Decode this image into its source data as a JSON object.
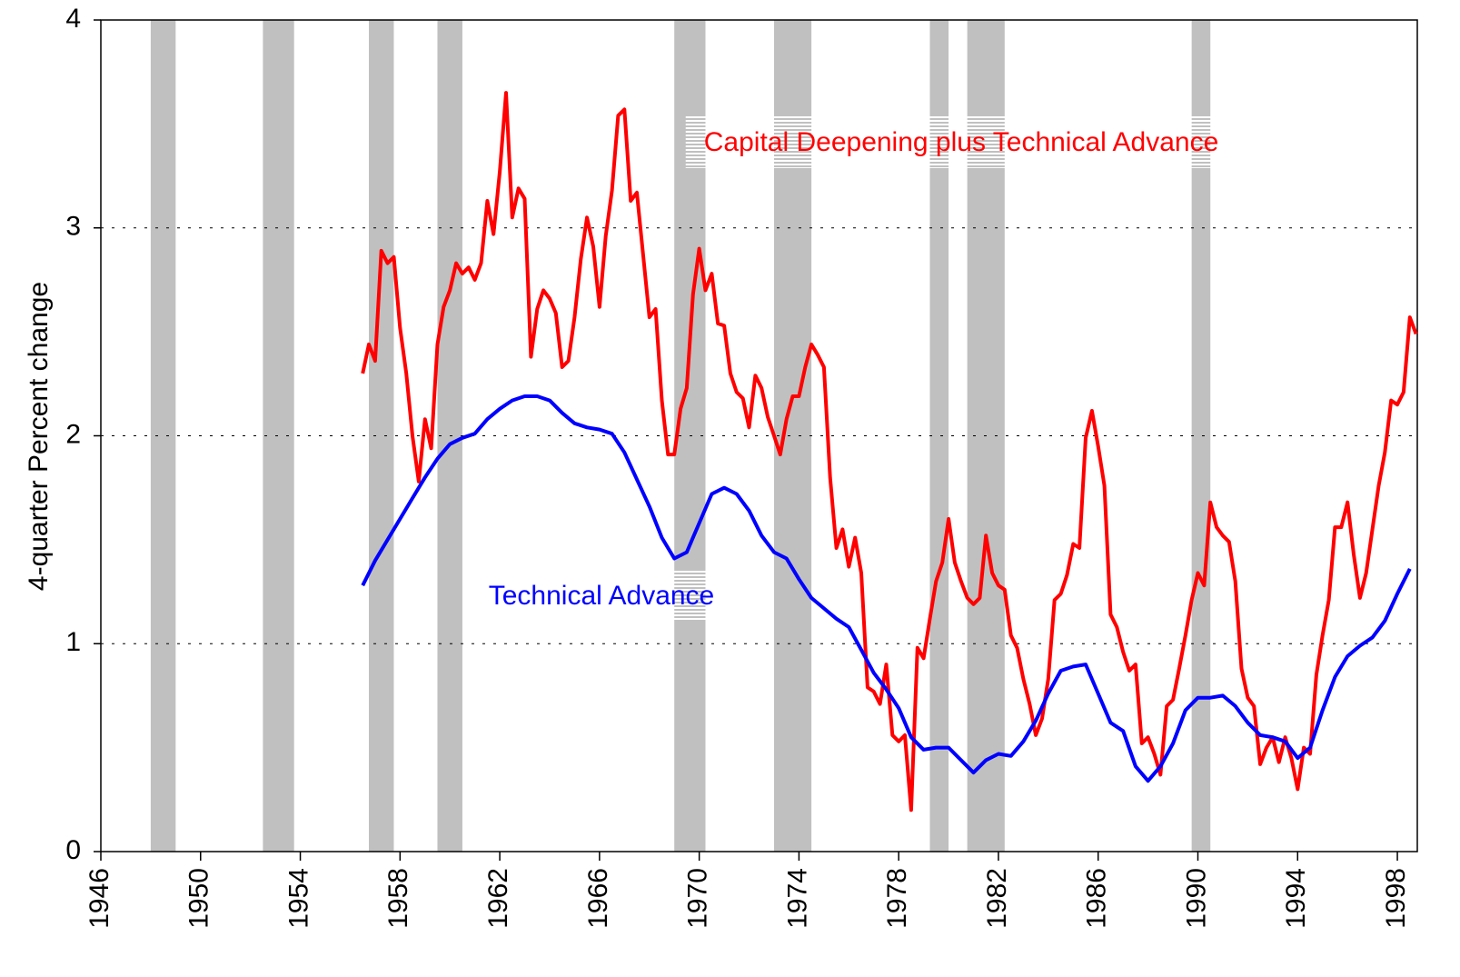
{
  "chart_data": {
    "type": "line",
    "y_label": "4-quarter Percent change",
    "xlim": [
      1946,
      1998.8
    ],
    "xticks": [
      1946,
      1950,
      1954,
      1958,
      1962,
      1966,
      1970,
      1974,
      1978,
      1982,
      1986,
      1990,
      1994,
      1998
    ],
    "ylim": [
      0,
      4
    ],
    "yticks": [
      0,
      1,
      2,
      3,
      4
    ],
    "grid": true,
    "shade_color": "#c0c0c0",
    "shaded_regions": [
      [
        1948,
        1949
      ],
      [
        1952.5,
        1953.75
      ],
      [
        1956.75,
        1957.75
      ],
      [
        1959.5,
        1960.5
      ],
      [
        1969,
        1970.25
      ],
      [
        1973,
        1974.5
      ],
      [
        1979.25,
        1980
      ],
      [
        1980.75,
        1982.25
      ],
      [
        1989.75,
        1990.5
      ]
    ],
    "series": [
      {
        "name": "Capital Deepening plus Technical Advance",
        "color": "#ff0000",
        "x": [
          1956.5,
          1956.75,
          1957,
          1957.25,
          1957.5,
          1957.75,
          1958,
          1958.25,
          1958.5,
          1958.75,
          1959,
          1959.25,
          1959.5,
          1959.75,
          1960,
          1960.25,
          1960.5,
          1960.75,
          1961,
          1961.25,
          1961.5,
          1961.75,
          1962,
          1962.25,
          1962.5,
          1962.75,
          1963,
          1963.25,
          1963.5,
          1963.75,
          1964,
          1964.25,
          1964.5,
          1964.75,
          1965,
          1965.25,
          1965.5,
          1965.75,
          1966,
          1966.25,
          1966.5,
          1966.75,
          1967,
          1967.25,
          1967.5,
          1967.75,
          1968,
          1968.25,
          1968.5,
          1968.75,
          1969,
          1969.25,
          1969.5,
          1969.75,
          1970,
          1970.25,
          1970.5,
          1970.75,
          1971,
          1971.25,
          1971.5,
          1971.75,
          1972,
          1972.25,
          1972.5,
          1972.75,
          1973,
          1973.25,
          1973.5,
          1973.75,
          1974,
          1974.25,
          1974.5,
          1974.75,
          1975,
          1975.25,
          1975.5,
          1975.75,
          1976,
          1976.25,
          1976.5,
          1976.75,
          1977,
          1977.25,
          1977.5,
          1977.75,
          1978,
          1978.25,
          1978.5,
          1978.75,
          1979,
          1979.25,
          1979.5,
          1979.75,
          1980,
          1980.25,
          1980.5,
          1980.75,
          1981,
          1981.25,
          1981.5,
          1981.75,
          1982,
          1982.25,
          1982.5,
          1982.75,
          1983,
          1983.25,
          1983.5,
          1983.75,
          1984,
          1984.25,
          1984.5,
          1984.75,
          1985,
          1985.25,
          1985.5,
          1985.75,
          1986,
          1986.25,
          1986.5,
          1986.75,
          1987,
          1987.25,
          1987.5,
          1987.75,
          1988,
          1988.25,
          1988.5,
          1988.75,
          1989,
          1989.25,
          1989.5,
          1989.75,
          1990,
          1990.25,
          1990.5,
          1990.75,
          1991,
          1991.25,
          1991.5,
          1991.75,
          1992,
          1992.25,
          1992.5,
          1992.75,
          1993,
          1993.25,
          1993.5,
          1993.75,
          1994,
          1994.25,
          1994.5,
          1994.75,
          1995,
          1995.25,
          1995.5,
          1995.75,
          1996,
          1996.25,
          1996.5,
          1996.75,
          1997,
          1997.25,
          1997.5,
          1997.75,
          1998,
          1998.25,
          1998.5,
          1998.75
        ],
        "values": [
          2.3,
          2.44,
          2.36,
          2.89,
          2.83,
          2.86,
          2.52,
          2.3,
          2.0,
          1.78,
          2.08,
          1.94,
          2.44,
          2.62,
          2.7,
          2.83,
          2.78,
          2.81,
          2.75,
          2.83,
          3.13,
          2.97,
          3.27,
          3.65,
          3.05,
          3.19,
          3.14,
          2.38,
          2.61,
          2.7,
          2.66,
          2.59,
          2.33,
          2.36,
          2.57,
          2.85,
          3.05,
          2.91,
          2.62,
          2.96,
          3.18,
          3.54,
          3.57,
          3.13,
          3.17,
          2.87,
          2.57,
          2.61,
          2.17,
          1.91,
          1.91,
          2.13,
          2.23,
          2.68,
          2.9,
          2.7,
          2.78,
          2.54,
          2.53,
          2.3,
          2.21,
          2.18,
          2.04,
          2.29,
          2.23,
          2.09,
          2.0,
          1.91,
          2.08,
          2.19,
          2.19,
          2.33,
          2.44,
          2.39,
          2.33,
          1.8,
          1.46,
          1.55,
          1.37,
          1.51,
          1.34,
          0.79,
          0.77,
          0.71,
          0.9,
          0.56,
          0.53,
          0.56,
          0.2,
          0.98,
          0.93,
          1.12,
          1.3,
          1.39,
          1.6,
          1.39,
          1.3,
          1.22,
          1.19,
          1.22,
          1.52,
          1.34,
          1.28,
          1.26,
          1.04,
          0.98,
          0.83,
          0.71,
          0.56,
          0.64,
          0.83,
          1.21,
          1.24,
          1.33,
          1.48,
          1.46,
          1.99,
          2.12,
          1.95,
          1.76,
          1.14,
          1.08,
          0.96,
          0.87,
          0.9,
          0.52,
          0.55,
          0.47,
          0.37,
          0.7,
          0.73,
          0.88,
          1.04,
          1.21,
          1.34,
          1.28,
          1.68,
          1.56,
          1.52,
          1.49,
          1.3,
          0.88,
          0.74,
          0.7,
          0.42,
          0.5,
          0.55,
          0.43,
          0.55,
          0.45,
          0.3,
          0.5,
          0.47,
          0.85,
          1.04,
          1.21,
          1.56,
          1.56,
          1.68,
          1.43,
          1.22,
          1.34,
          1.55,
          1.76,
          1.92,
          2.17,
          2.15,
          2.21,
          2.57,
          2.49
        ]
      },
      {
        "name": "Technical Advance",
        "color": "#0000ff",
        "x": [
          1956.5,
          1957,
          1957.5,
          1958,
          1958.5,
          1959,
          1959.5,
          1960,
          1960.5,
          1961,
          1961.5,
          1962,
          1962.5,
          1963,
          1963.5,
          1964,
          1964.5,
          1965,
          1965.5,
          1966,
          1966.5,
          1967,
          1967.5,
          1968,
          1968.5,
          1969,
          1969.5,
          1970,
          1970.5,
          1971,
          1971.5,
          1972,
          1972.5,
          1973,
          1973.5,
          1974,
          1974.5,
          1975,
          1975.5,
          1976,
          1976.5,
          1977,
          1977.5,
          1978,
          1978.5,
          1979,
          1979.5,
          1980,
          1980.5,
          1981,
          1981.5,
          1982,
          1982.5,
          1983,
          1983.5,
          1984,
          1984.5,
          1985,
          1985.5,
          1986,
          1986.5,
          1987,
          1987.5,
          1988,
          1988.5,
          1989,
          1989.5,
          1990,
          1990.5,
          1991,
          1991.5,
          1992,
          1992.5,
          1993,
          1993.5,
          1994,
          1994.5,
          1995,
          1995.5,
          1996,
          1996.5,
          1997,
          1997.5,
          1998,
          1998.5
        ],
        "values": [
          1.28,
          1.4,
          1.5,
          1.6,
          1.7,
          1.8,
          1.89,
          1.96,
          1.99,
          2.01,
          2.08,
          2.13,
          2.17,
          2.19,
          2.19,
          2.17,
          2.11,
          2.06,
          2.04,
          2.03,
          2.01,
          1.92,
          1.79,
          1.66,
          1.51,
          1.41,
          1.44,
          1.58,
          1.72,
          1.75,
          1.72,
          1.64,
          1.52,
          1.44,
          1.41,
          1.31,
          1.22,
          1.17,
          1.12,
          1.08,
          0.97,
          0.86,
          0.78,
          0.69,
          0.55,
          0.49,
          0.5,
          0.5,
          0.44,
          0.38,
          0.44,
          0.47,
          0.46,
          0.53,
          0.63,
          0.76,
          0.87,
          0.89,
          0.9,
          0.76,
          0.62,
          0.58,
          0.41,
          0.34,
          0.41,
          0.52,
          0.68,
          0.74,
          0.74,
          0.75,
          0.7,
          0.62,
          0.56,
          0.55,
          0.53,
          0.45,
          0.5,
          0.68,
          0.84,
          0.94,
          0.99,
          1.03,
          1.11,
          1.24,
          1.36
        ]
      }
    ]
  }
}
